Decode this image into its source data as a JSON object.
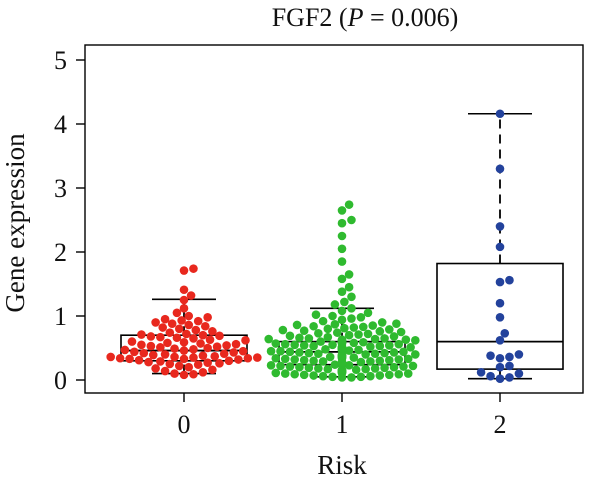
{
  "chart_data": {
    "type": "box",
    "title_main": "FGF2 (",
    "title_p": "P",
    "title_rest": " = 0.006)",
    "xlabel": "Risk",
    "ylabel": "Gene expression",
    "ylim": [
      0,
      5
    ],
    "yticks": [
      "0",
      "1",
      "2",
      "3",
      "4",
      "5"
    ],
    "grid": false,
    "categories": [
      "0",
      "1",
      "2"
    ],
    "series": [
      {
        "category": "0",
        "color": "#e8281e",
        "box": {
          "whisker_low": 0.1,
          "q1": 0.3,
          "median": 0.46,
          "q3": 0.7,
          "whisker_high": 1.26
        },
        "points": [
          1.74,
          1.71,
          1.41,
          1.32,
          1.25,
          1.12,
          1.05,
          1.0,
          0.98,
          0.95,
          0.93,
          0.92,
          0.9,
          0.88,
          0.86,
          0.84,
          0.82,
          0.8,
          0.78,
          0.76,
          0.74,
          0.72,
          0.71,
          0.7,
          0.69,
          0.68,
          0.67,
          0.66,
          0.65,
          0.63,
          0.62,
          0.6,
          0.59,
          0.58,
          0.57,
          0.56,
          0.55,
          0.54,
          0.53,
          0.52,
          0.51,
          0.5,
          0.49,
          0.48,
          0.47,
          0.46,
          0.45,
          0.44,
          0.43,
          0.42,
          0.41,
          0.4,
          0.39,
          0.38,
          0.37,
          0.36,
          0.36,
          0.35,
          0.35,
          0.34,
          0.34,
          0.33,
          0.33,
          0.32,
          0.31,
          0.3,
          0.29,
          0.28,
          0.27,
          0.26,
          0.25,
          0.24,
          0.22,
          0.2,
          0.18,
          0.16,
          0.14,
          0.12,
          0.1,
          0.09,
          0.08
        ]
      },
      {
        "category": "1",
        "color": "#2fba2f",
        "box": {
          "whisker_low": 0.05,
          "q1": 0.24,
          "median": 0.44,
          "q3": 0.6,
          "whisker_high": 1.12
        },
        "points": [
          2.74,
          2.65,
          2.5,
          2.45,
          2.25,
          2.05,
          1.85,
          1.65,
          1.58,
          1.45,
          1.38,
          1.3,
          1.22,
          1.18,
          1.12,
          1.08,
          1.05,
          1.02,
          1.0,
          0.98,
          0.96,
          0.94,
          0.92,
          0.9,
          0.88,
          0.87,
          0.86,
          0.85,
          0.84,
          0.83,
          0.82,
          0.81,
          0.8,
          0.79,
          0.78,
          0.77,
          0.76,
          0.75,
          0.74,
          0.73,
          0.72,
          0.71,
          0.7,
          0.69,
          0.68,
          0.67,
          0.66,
          0.65,
          0.65,
          0.64,
          0.64,
          0.63,
          0.63,
          0.62,
          0.62,
          0.61,
          0.61,
          0.6,
          0.6,
          0.59,
          0.59,
          0.58,
          0.58,
          0.57,
          0.57,
          0.56,
          0.56,
          0.55,
          0.55,
          0.54,
          0.54,
          0.53,
          0.53,
          0.52,
          0.52,
          0.51,
          0.51,
          0.5,
          0.5,
          0.49,
          0.49,
          0.48,
          0.48,
          0.47,
          0.47,
          0.46,
          0.46,
          0.45,
          0.45,
          0.44,
          0.44,
          0.43,
          0.43,
          0.42,
          0.42,
          0.41,
          0.41,
          0.4,
          0.4,
          0.39,
          0.39,
          0.38,
          0.38,
          0.37,
          0.37,
          0.36,
          0.36,
          0.35,
          0.35,
          0.34,
          0.34,
          0.33,
          0.33,
          0.32,
          0.32,
          0.31,
          0.31,
          0.3,
          0.3,
          0.29,
          0.29,
          0.28,
          0.28,
          0.27,
          0.27,
          0.26,
          0.26,
          0.25,
          0.25,
          0.24,
          0.24,
          0.23,
          0.23,
          0.22,
          0.22,
          0.21,
          0.21,
          0.2,
          0.2,
          0.19,
          0.19,
          0.18,
          0.18,
          0.17,
          0.17,
          0.16,
          0.16,
          0.15,
          0.15,
          0.14,
          0.14,
          0.13,
          0.13,
          0.12,
          0.12,
          0.11,
          0.11,
          0.1,
          0.1,
          0.09,
          0.09,
          0.08,
          0.08,
          0.07,
          0.07,
          0.06,
          0.06,
          0.05,
          0.05,
          0.04,
          0.04
        ]
      },
      {
        "category": "2",
        "color": "#23429c",
        "box": {
          "whisker_low": 0.02,
          "q1": 0.17,
          "median": 0.6,
          "q3": 1.82,
          "whisker_high": 4.16
        },
        "points": [
          4.16,
          3.3,
          2.4,
          2.08,
          1.56,
          1.53,
          1.2,
          0.98,
          0.73,
          0.62,
          0.4,
          0.38,
          0.36,
          0.34,
          0.22,
          0.2,
          0.12,
          0.1,
          0.06,
          0.04,
          0.02
        ]
      }
    ]
  }
}
